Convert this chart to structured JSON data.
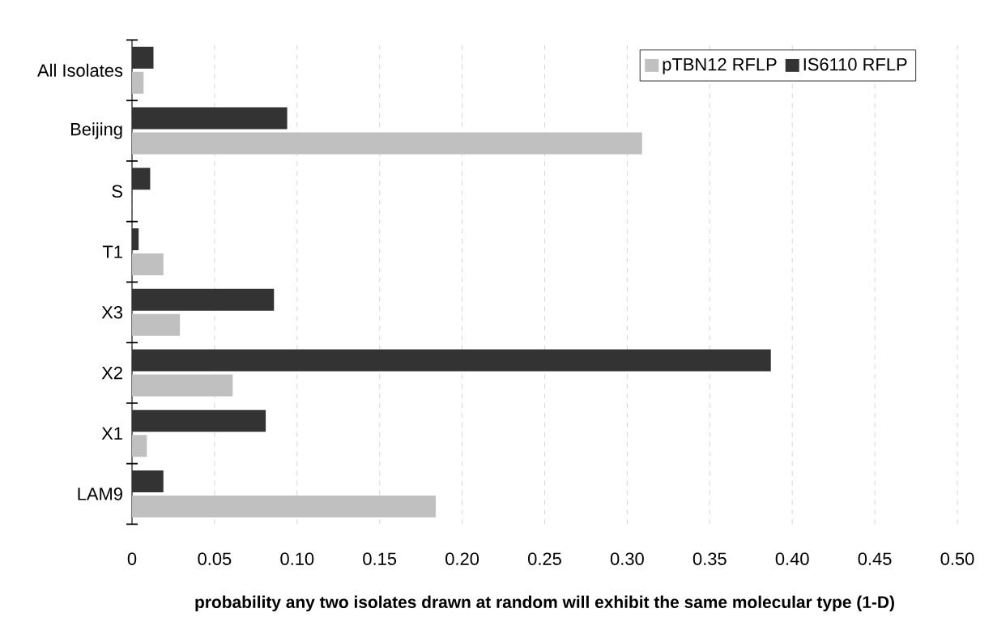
{
  "chart_data": {
    "type": "bar",
    "orientation": "horizontal",
    "categories": [
      "All Isolates",
      "Beijing",
      "S",
      "T1",
      "X3",
      "X2",
      "X1",
      "LAM9"
    ],
    "series": [
      {
        "name": "pTBN12 RFLP",
        "color": "#c0c0c0",
        "values": [
          0.007,
          0.309,
          null,
          0.019,
          0.029,
          0.061,
          0.009,
          0.184
        ]
      },
      {
        "name": "IS6110 RFLP",
        "color": "#333333",
        "values": [
          0.013,
          0.094,
          0.011,
          0.004,
          0.086,
          0.387,
          0.081,
          0.019
        ]
      }
    ],
    "xlabel": "probability any two isolates drawn at random will exhibit the same molecular type (1-D)",
    "xlim": [
      0,
      0.5
    ],
    "xticks": [
      0,
      0.05,
      {
        "value": 0.1,
        "label": "0.10"
      },
      0.15,
      {
        "value": 0.2,
        "label": "0.20"
      },
      0.25,
      {
        "value": 0.3,
        "label": "0.30"
      },
      0.35,
      {
        "value": 0.4,
        "label": "0.40"
      },
      0.45,
      {
        "value": 0.5,
        "label": "0.50"
      }
    ],
    "grid": "x",
    "legend": "top right"
  }
}
